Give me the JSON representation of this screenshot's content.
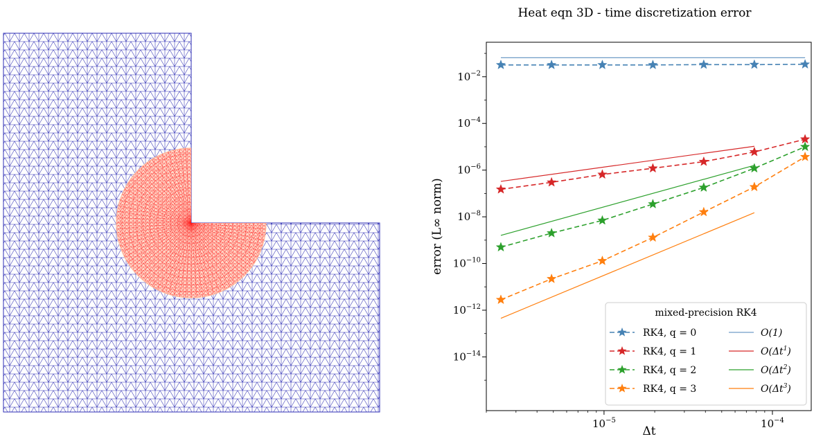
{
  "mesh_panel": {
    "outer_color": "#2d2db4",
    "refined_color": "#ff2020",
    "refined_fill": "#ffd8c8"
  },
  "chart_data": {
    "type": "line",
    "title": "Heat eqn 3D - time discretization error",
    "xlabel": "Δt",
    "ylabel": "error (L∞ norm)",
    "xscale": "log",
    "yscale": "log",
    "xlim": [
      2e-06,
      0.00017
    ],
    "ylim": [
      5e-17,
      0.3
    ],
    "xticks": [
      {
        "value": 1e-05,
        "base": "10",
        "exp": "−5"
      },
      {
        "value": 0.0001,
        "base": "10",
        "exp": "−4"
      }
    ],
    "yticks": [
      {
        "value": 0.01,
        "base": "10",
        "exp": "−2"
      },
      {
        "value": 0.0001,
        "base": "10",
        "exp": "−4"
      },
      {
        "value": 1e-06,
        "base": "10",
        "exp": "−6"
      },
      {
        "value": 1e-08,
        "base": "10",
        "exp": "−8"
      },
      {
        "value": 1e-10,
        "base": "10",
        "exp": "−10"
      },
      {
        "value": 1e-12,
        "base": "10",
        "exp": "−12"
      },
      {
        "value": 1e-14,
        "base": "10",
        "exp": "−14"
      }
    ],
    "grid": false,
    "legend": {
      "title": "mixed-precision RK4",
      "placement": "lower-right",
      "columns": 2
    },
    "x": [
      2.44e-06,
      4.88e-06,
      9.77e-06,
      1.95e-05,
      3.91e-05,
      7.81e-05,
      0.00015625
    ],
    "series": [
      {
        "name": "RK4, q = 0",
        "color": "#4682b4",
        "style": "dashed",
        "marker": "star",
        "values": [
          0.032,
          0.032,
          0.032,
          0.032,
          0.033,
          0.033,
          0.034
        ]
      },
      {
        "name": "RK4, q = 1",
        "color": "#d62728",
        "style": "dashed",
        "marker": "star",
        "values": [
          1.5e-07,
          3e-07,
          6.5e-07,
          1.2e-06,
          2.3e-06,
          6e-06,
          2.1e-05
        ]
      },
      {
        "name": "RK4, q = 2",
        "color": "#2ca02c",
        "style": "dashed",
        "marker": "star",
        "values": [
          5e-10,
          2e-09,
          7e-09,
          3.5e-08,
          1.8e-07,
          1.2e-06,
          1e-05
        ]
      },
      {
        "name": "RK4, q = 3",
        "color": "#ff7f0e",
        "style": "dashed",
        "marker": "star",
        "values": [
          2.8e-12,
          2.2e-11,
          1.3e-10,
          1.3e-09,
          1.6e-08,
          1.9e-07,
          3.7e-06
        ]
      }
    ],
    "reference_lines": [
      {
        "name": "O(1)",
        "label_base": "O(1)",
        "label_exp": "",
        "color": "#6f9cc6",
        "x": [
          2.44e-06,
          0.00015625
        ],
        "values": [
          0.065,
          0.065
        ]
      },
      {
        "name": "O(Δt¹)",
        "label_base": "O(Δt",
        "label_exp": "1",
        "color": "#d62728",
        "x": [
          2.44e-06,
          7.81e-05
        ],
        "values": [
          3.3e-07,
          1.05e-05
        ]
      },
      {
        "name": "O(Δt²)",
        "label_base": "O(Δt",
        "label_exp": "2",
        "color": "#2ca02c",
        "x": [
          2.44e-06,
          7.81e-05
        ],
        "values": [
          1.6e-09,
          1.6e-06
        ]
      },
      {
        "name": "O(Δt³)",
        "label_base": "O(Δt",
        "label_exp": "3",
        "color": "#ff7f0e",
        "x": [
          2.44e-06,
          7.81e-05
        ],
        "values": [
          4.5e-13,
          1.5e-08
        ]
      }
    ]
  }
}
